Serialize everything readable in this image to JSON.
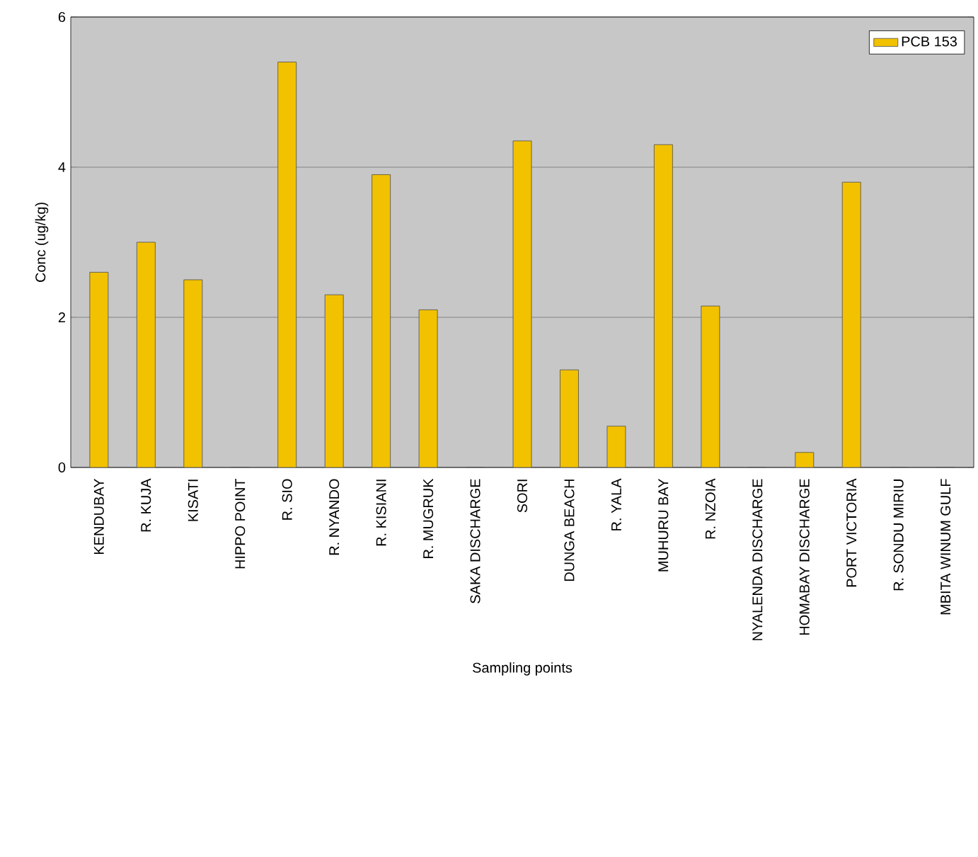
{
  "chart_data": {
    "type": "bar",
    "xlabel": "Sampling points",
    "ylabel": "Conc (ug/kg)",
    "categories": [
      "KENDUBAY",
      "R. KUJA",
      "KISATI",
      "HIPPO POINT",
      "R. SIO",
      "R. NYANDO",
      "R. KISIANI",
      "R. MUGRUK",
      "SAKA DISCHARGE",
      "SORI",
      "DUNGA BEACH",
      "R. YALA",
      "MUHURU BAY",
      "R. NZOIA",
      "NYALENDA DISCHARGE",
      "HOMABAY DISCHARGE",
      "PORT VICTORIA",
      "R. SONDU MIRIU",
      "MBITA WINUM GULF"
    ],
    "series": [
      {
        "name": "PCB 153",
        "color": "#f2c100",
        "values": [
          2.6,
          3.0,
          2.5,
          0,
          5.4,
          2.3,
          3.9,
          2.1,
          0,
          4.35,
          1.3,
          0.55,
          4.3,
          2.15,
          0,
          0.2,
          3.8,
          0,
          0
        ]
      }
    ],
    "ylim": [
      0,
      6
    ],
    "yticks": [
      0,
      2,
      4,
      6
    ],
    "grid": "y",
    "legend": "top right"
  }
}
